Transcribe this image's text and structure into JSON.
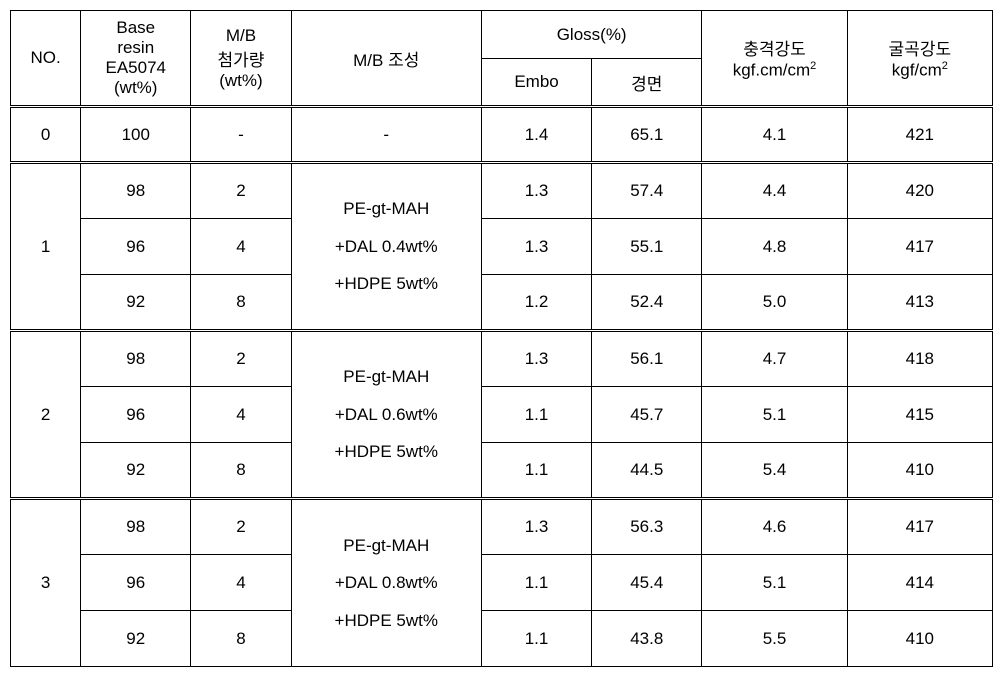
{
  "header": {
    "no": "NO.",
    "base_resin_line1": "Base",
    "base_resin_line2": "resin",
    "base_resin_line3": "EA5074",
    "base_resin_line4": "(wt%)",
    "mb_amount_line1": "M/B",
    "mb_amount_line2": "첨가량",
    "mb_amount_line3": "(wt%)",
    "mb_composition": "M/B 조성",
    "gloss_top": "Gloss(%)",
    "gloss_embo": "Embo",
    "gloss_mirror": "경면",
    "impact_line1": "충격강도",
    "impact_line2": "kgf.cm/cm",
    "impact_sup": "2",
    "flex_line1": "굴곡강도",
    "flex_line2": "kgf/cm",
    "flex_sup": "2"
  },
  "groups": [
    {
      "no": "0",
      "composition": "-",
      "rows": [
        {
          "base": "100",
          "mb": "-",
          "embo": "1.4",
          "mirror": "65.1",
          "impact": "4.1",
          "flex": "421"
        }
      ]
    },
    {
      "no": "1",
      "comp_line1": "PE-gt-MAH",
      "comp_line2": "+DAL 0.4wt%",
      "comp_line3": "+HDPE 5wt%",
      "rows": [
        {
          "base": "98",
          "mb": "2",
          "embo": "1.3",
          "mirror": "57.4",
          "impact": "4.4",
          "flex": "420"
        },
        {
          "base": "96",
          "mb": "4",
          "embo": "1.3",
          "mirror": "55.1",
          "impact": "4.8",
          "flex": "417"
        },
        {
          "base": "92",
          "mb": "8",
          "embo": "1.2",
          "mirror": "52.4",
          "impact": "5.0",
          "flex": "413"
        }
      ]
    },
    {
      "no": "2",
      "comp_line1": "PE-gt-MAH",
      "comp_line2": "+DAL 0.6wt%",
      "comp_line3": "+HDPE 5wt%",
      "rows": [
        {
          "base": "98",
          "mb": "2",
          "embo": "1.3",
          "mirror": "56.1",
          "impact": "4.7",
          "flex": "418"
        },
        {
          "base": "96",
          "mb": "4",
          "embo": "1.1",
          "mirror": "45.7",
          "impact": "5.1",
          "flex": "415"
        },
        {
          "base": "92",
          "mb": "8",
          "embo": "1.1",
          "mirror": "44.5",
          "impact": "5.4",
          "flex": "410"
        }
      ]
    },
    {
      "no": "3",
      "comp_line1": "PE-gt-MAH",
      "comp_line2": "+DAL 0.8wt%",
      "comp_line3": "+HDPE 5wt%",
      "rows": [
        {
          "base": "98",
          "mb": "2",
          "embo": "1.3",
          "mirror": "56.3",
          "impact": "4.6",
          "flex": "417"
        },
        {
          "base": "96",
          "mb": "4",
          "embo": "1.1",
          "mirror": "45.4",
          "impact": "5.1",
          "flex": "414"
        },
        {
          "base": "92",
          "mb": "8",
          "embo": "1.1",
          "mirror": "43.8",
          "impact": "5.5",
          "flex": "410"
        }
      ]
    }
  ],
  "font_size_header": 17,
  "font_size_data": 17,
  "colors": {
    "border": "#000000",
    "background": "#ffffff",
    "text": "#000000"
  }
}
